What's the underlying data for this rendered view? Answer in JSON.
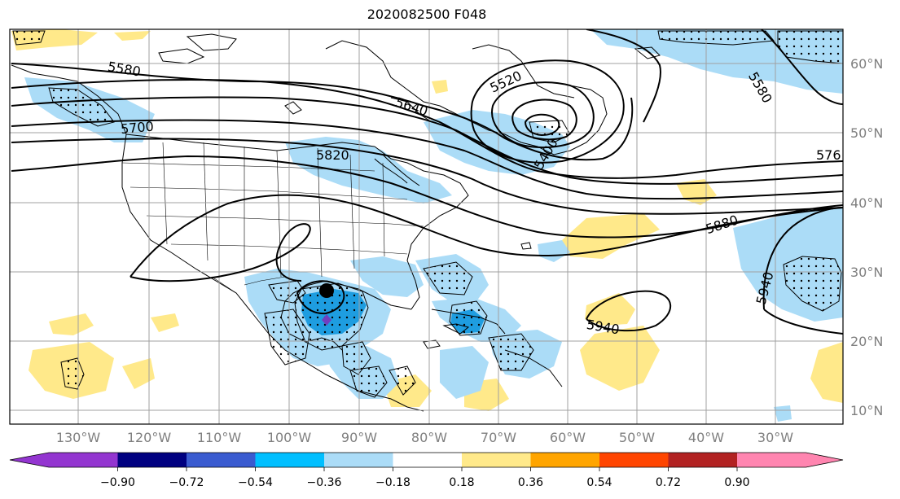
{
  "title": "2020082500 F048",
  "map": {
    "lon_labels": [
      "130°W",
      "120°W",
      "110°W",
      "100°W",
      "90°W",
      "80°W",
      "70°W",
      "60°W",
      "50°W",
      "40°W",
      "30°W"
    ],
    "lat_labels": [
      "60°N",
      "50°N",
      "40°N",
      "30°N",
      "20°N",
      "10°N"
    ],
    "contour_labels": [
      {
        "text": "5580",
        "rotate": 10
      },
      {
        "text": "5700",
        "rotate": -5
      },
      {
        "text": "5640",
        "rotate": 18
      },
      {
        "text": "5520",
        "rotate": -25
      },
      {
        "text": "5400",
        "rotate": -60
      },
      {
        "text": "5820",
        "rotate": 0
      },
      {
        "text": "5580",
        "rotate": 60
      },
      {
        "text": "576",
        "rotate": 0
      },
      {
        "text": "5880",
        "rotate": -18
      },
      {
        "text": "5940",
        "rotate": -75
      },
      {
        "text": "5940",
        "rotate": 10
      }
    ],
    "colors": {
      "light_blue": "#abdcf7",
      "blue": "#1e9de0",
      "light_yellow": "#ffe98a",
      "coast": "#000000",
      "grid": "#a0a0a0",
      "contour": "#000000"
    },
    "markers": [
      {
        "name": "storm-center",
        "color": "#000000"
      },
      {
        "name": "forecast-point",
        "color": "#7040c0"
      }
    ]
  },
  "colorbar": {
    "labels": [
      "−0.90",
      "−0.72",
      "−0.54",
      "−0.36",
      "−0.18",
      "0.18",
      "0.36",
      "0.54",
      "0.72",
      "0.90"
    ],
    "colors": [
      "#9335d0",
      "#000080",
      "#3a5bd0",
      "#00bfff",
      "#abdcf7",
      "#ffffff",
      "#ffe98a",
      "#ffa500",
      "#ff4500",
      "#b22222",
      "#ff85b0",
      "#ff85b0"
    ]
  }
}
